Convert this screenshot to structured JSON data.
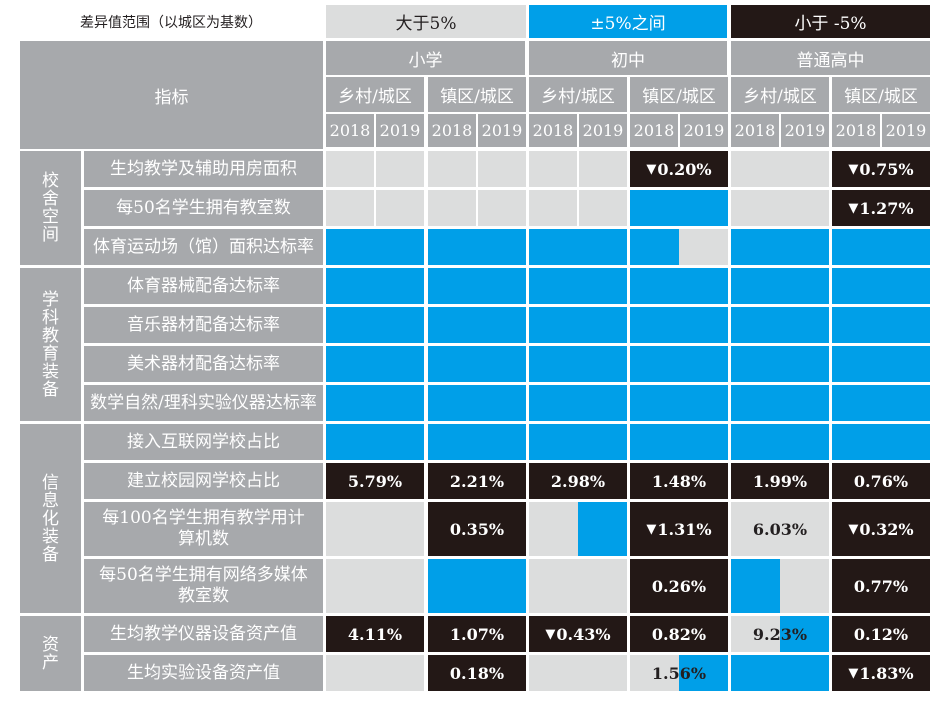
{
  "legend": {
    "title": "差异值范围（以城区为基数）",
    "items": [
      {
        "label": "大于5%",
        "color": "#dcdddd",
        "text_color": "#231f20"
      },
      {
        "label": "±5%之间",
        "color": "#009fe8",
        "text_color": "#ffffff"
      },
      {
        "label": "小于 -5%",
        "color": "#231816",
        "text_color": "#ffffff"
      }
    ]
  },
  "header": {
    "indicator_label": "指标",
    "levels": [
      "小学",
      "初中",
      "普通高中"
    ],
    "comparisons": [
      "乡村/城区",
      "镇区/城区"
    ],
    "years": [
      "2018",
      "2019"
    ]
  },
  "categories": [
    {
      "label": "校舍空间",
      "rows": 3
    },
    {
      "label": "学科教育装备",
      "rows": 4
    },
    {
      "label": "信息化装备",
      "rows": 4
    },
    {
      "label": "资产",
      "rows": 2
    }
  ],
  "rows": [
    {
      "indicator": "生均教学及辅助用房面积",
      "cells": [
        {
          "span": 2,
          "parts": [
            {
              "c": "g",
              "w": 1
            },
            {
              "c": "g",
              "w": 1
            }
          ],
          "text": "",
          "down": false
        },
        {
          "span": 2,
          "parts": [
            {
              "c": "g",
              "w": 1
            },
            {
              "c": "g",
              "w": 1
            }
          ],
          "text": "",
          "down": false
        },
        {
          "span": 2,
          "parts": [
            {
              "c": "g",
              "w": 1
            },
            {
              "c": "g",
              "w": 1
            }
          ],
          "text": "",
          "down": false
        },
        {
          "span": 2,
          "parts": [
            {
              "c": "k",
              "w": 1
            }
          ],
          "text": "0.20%",
          "down": true
        },
        {
          "span": 2,
          "parts": [
            {
              "c": "g",
              "w": 1
            }
          ],
          "text": "",
          "down": false
        },
        {
          "span": 2,
          "parts": [
            {
              "c": "k",
              "w": 1
            }
          ],
          "text": "0.75%",
          "down": true
        }
      ]
    },
    {
      "indicator": "每50名学生拥有教室数",
      "cells": [
        {
          "span": 2,
          "parts": [
            {
              "c": "g",
              "w": 1
            },
            {
              "c": "g",
              "w": 1
            }
          ],
          "text": "",
          "down": false
        },
        {
          "span": 2,
          "parts": [
            {
              "c": "g",
              "w": 1
            },
            {
              "c": "g",
              "w": 1
            }
          ],
          "text": "",
          "down": false
        },
        {
          "span": 2,
          "parts": [
            {
              "c": "g",
              "w": 1
            },
            {
              "c": "g",
              "w": 1
            }
          ],
          "text": "",
          "down": false
        },
        {
          "span": 2,
          "parts": [
            {
              "c": "b",
              "w": 1
            }
          ],
          "text": "",
          "down": false
        },
        {
          "span": 2,
          "parts": [
            {
              "c": "g",
              "w": 1
            }
          ],
          "text": "",
          "down": false
        },
        {
          "span": 2,
          "parts": [
            {
              "c": "k",
              "w": 1
            }
          ],
          "text": "1.27%",
          "down": true
        }
      ]
    },
    {
      "indicator": "体育运动场（馆）面积达标率",
      "cells": [
        {
          "span": 2,
          "parts": [
            {
              "c": "b",
              "w": 1
            }
          ],
          "text": "",
          "down": false
        },
        {
          "span": 2,
          "parts": [
            {
              "c": "b",
              "w": 1
            }
          ],
          "text": "",
          "down": false
        },
        {
          "span": 2,
          "parts": [
            {
              "c": "b",
              "w": 1
            }
          ],
          "text": "",
          "down": false
        },
        {
          "span": 2,
          "parts": [
            {
              "c": "b",
              "w": 1
            },
            {
              "c": "g",
              "w": 1
            }
          ],
          "text": "",
          "down": false
        },
        {
          "span": 2,
          "parts": [
            {
              "c": "b",
              "w": 1
            }
          ],
          "text": "",
          "down": false
        },
        {
          "span": 2,
          "parts": [
            {
              "c": "b",
              "w": 1
            }
          ],
          "text": "",
          "down": false
        }
      ]
    },
    {
      "indicator": "体育器械配备达标率",
      "cells": [
        {
          "span": 2,
          "parts": [
            {
              "c": "b",
              "w": 1
            }
          ],
          "text": "",
          "down": false
        },
        {
          "span": 2,
          "parts": [
            {
              "c": "b",
              "w": 1
            }
          ],
          "text": "",
          "down": false
        },
        {
          "span": 2,
          "parts": [
            {
              "c": "b",
              "w": 1
            }
          ],
          "text": "",
          "down": false
        },
        {
          "span": 2,
          "parts": [
            {
              "c": "b",
              "w": 1
            }
          ],
          "text": "",
          "down": false
        },
        {
          "span": 2,
          "parts": [
            {
              "c": "b",
              "w": 1
            }
          ],
          "text": "",
          "down": false
        },
        {
          "span": 2,
          "parts": [
            {
              "c": "b",
              "w": 1
            }
          ],
          "text": "",
          "down": false
        }
      ]
    },
    {
      "indicator": "音乐器材配备达标率",
      "cells": [
        {
          "span": 2,
          "parts": [
            {
              "c": "b",
              "w": 1
            }
          ],
          "text": "",
          "down": false
        },
        {
          "span": 2,
          "parts": [
            {
              "c": "b",
              "w": 1
            }
          ],
          "text": "",
          "down": false
        },
        {
          "span": 2,
          "parts": [
            {
              "c": "b",
              "w": 1
            }
          ],
          "text": "",
          "down": false
        },
        {
          "span": 2,
          "parts": [
            {
              "c": "b",
              "w": 1
            }
          ],
          "text": "",
          "down": false
        },
        {
          "span": 2,
          "parts": [
            {
              "c": "b",
              "w": 1
            }
          ],
          "text": "",
          "down": false
        },
        {
          "span": 2,
          "parts": [
            {
              "c": "b",
              "w": 1
            }
          ],
          "text": "",
          "down": false
        }
      ]
    },
    {
      "indicator": "美术器材配备达标率",
      "cells": [
        {
          "span": 2,
          "parts": [
            {
              "c": "b",
              "w": 1
            }
          ],
          "text": "",
          "down": false
        },
        {
          "span": 2,
          "parts": [
            {
              "c": "b",
              "w": 1
            }
          ],
          "text": "",
          "down": false
        },
        {
          "span": 2,
          "parts": [
            {
              "c": "b",
              "w": 1
            }
          ],
          "text": "",
          "down": false
        },
        {
          "span": 2,
          "parts": [
            {
              "c": "b",
              "w": 1
            }
          ],
          "text": "",
          "down": false
        },
        {
          "span": 2,
          "parts": [
            {
              "c": "b",
              "w": 1
            }
          ],
          "text": "",
          "down": false
        },
        {
          "span": 2,
          "parts": [
            {
              "c": "b",
              "w": 1
            }
          ],
          "text": "",
          "down": false
        }
      ]
    },
    {
      "indicator": "数学自然/理科实验仪器达标率",
      "cells": [
        {
          "span": 2,
          "parts": [
            {
              "c": "b",
              "w": 1
            }
          ],
          "text": "",
          "down": false
        },
        {
          "span": 2,
          "parts": [
            {
              "c": "b",
              "w": 1
            }
          ],
          "text": "",
          "down": false
        },
        {
          "span": 2,
          "parts": [
            {
              "c": "b",
              "w": 1
            }
          ],
          "text": "",
          "down": false
        },
        {
          "span": 2,
          "parts": [
            {
              "c": "b",
              "w": 1
            }
          ],
          "text": "",
          "down": false
        },
        {
          "span": 2,
          "parts": [
            {
              "c": "b",
              "w": 1
            }
          ],
          "text": "",
          "down": false
        },
        {
          "span": 2,
          "parts": [
            {
              "c": "b",
              "w": 1
            }
          ],
          "text": "",
          "down": false
        }
      ]
    },
    {
      "indicator": "接入互联网学校占比",
      "cells": [
        {
          "span": 2,
          "parts": [
            {
              "c": "b",
              "w": 1
            }
          ],
          "text": "",
          "down": false
        },
        {
          "span": 2,
          "parts": [
            {
              "c": "b",
              "w": 1
            }
          ],
          "text": "",
          "down": false
        },
        {
          "span": 2,
          "parts": [
            {
              "c": "b",
              "w": 1
            }
          ],
          "text": "",
          "down": false
        },
        {
          "span": 2,
          "parts": [
            {
              "c": "b",
              "w": 1
            }
          ],
          "text": "",
          "down": false
        },
        {
          "span": 2,
          "parts": [
            {
              "c": "b",
              "w": 1
            }
          ],
          "text": "",
          "down": false
        },
        {
          "span": 2,
          "parts": [
            {
              "c": "b",
              "w": 1
            }
          ],
          "text": "",
          "down": false
        }
      ]
    },
    {
      "indicator": "建立校园网学校占比",
      "cells": [
        {
          "span": 2,
          "parts": [
            {
              "c": "k",
              "w": 1
            }
          ],
          "text": "5.79%",
          "down": false
        },
        {
          "span": 2,
          "parts": [
            {
              "c": "k",
              "w": 1
            }
          ],
          "text": "2.21%",
          "down": false
        },
        {
          "span": 2,
          "parts": [
            {
              "c": "k",
              "w": 1
            }
          ],
          "text": "2.98%",
          "down": false
        },
        {
          "span": 2,
          "parts": [
            {
              "c": "k",
              "w": 1
            }
          ],
          "text": "1.48%",
          "down": false
        },
        {
          "span": 2,
          "parts": [
            {
              "c": "k",
              "w": 1
            }
          ],
          "text": "1.99%",
          "down": false
        },
        {
          "span": 2,
          "parts": [
            {
              "c": "k",
              "w": 1
            }
          ],
          "text": "0.76%",
          "down": false
        }
      ]
    },
    {
      "indicator": "每100名学生拥有教学用计算机数",
      "cells": [
        {
          "span": 2,
          "parts": [
            {
              "c": "g",
              "w": 1
            }
          ],
          "text": "",
          "down": false
        },
        {
          "span": 2,
          "parts": [
            {
              "c": "k",
              "w": 1
            }
          ],
          "text": "0.35%",
          "down": false
        },
        {
          "span": 2,
          "parts": [
            {
              "c": "g",
              "w": 1
            },
            {
              "c": "b",
              "w": 1
            }
          ],
          "text": "",
          "down": false
        },
        {
          "span": 2,
          "parts": [
            {
              "c": "k",
              "w": 1
            }
          ],
          "text": "1.31%",
          "down": true
        },
        {
          "span": 2,
          "parts": [
            {
              "c": "g",
              "w": 1
            }
          ],
          "text": "6.03%",
          "down": false
        },
        {
          "span": 2,
          "parts": [
            {
              "c": "k",
              "w": 1
            }
          ],
          "text": "0.32%",
          "down": true
        }
      ]
    },
    {
      "indicator": "每50名学生拥有网络多媒体教室数",
      "cells": [
        {
          "span": 2,
          "parts": [
            {
              "c": "g",
              "w": 1
            }
          ],
          "text": "",
          "down": false
        },
        {
          "span": 2,
          "parts": [
            {
              "c": "b",
              "w": 1
            }
          ],
          "text": "",
          "down": false
        },
        {
          "span": 2,
          "parts": [
            {
              "c": "g",
              "w": 1
            }
          ],
          "text": "",
          "down": false
        },
        {
          "span": 2,
          "parts": [
            {
              "c": "k",
              "w": 1
            }
          ],
          "text": "0.26%",
          "down": false
        },
        {
          "span": 2,
          "parts": [
            {
              "c": "b",
              "w": 1
            },
            {
              "c": "g",
              "w": 1
            }
          ],
          "text": "",
          "down": false
        },
        {
          "span": 2,
          "parts": [
            {
              "c": "k",
              "w": 1
            }
          ],
          "text": "0.77%",
          "down": false
        }
      ]
    },
    {
      "indicator": "生均教学仪器设备资产值",
      "cells": [
        {
          "span": 2,
          "parts": [
            {
              "c": "k",
              "w": 1
            }
          ],
          "text": "4.11%",
          "down": false
        },
        {
          "span": 2,
          "parts": [
            {
              "c": "k",
              "w": 1
            }
          ],
          "text": "1.07%",
          "down": false
        },
        {
          "span": 2,
          "parts": [
            {
              "c": "k",
              "w": 1
            }
          ],
          "text": "0.43%",
          "down": true
        },
        {
          "span": 2,
          "parts": [
            {
              "c": "k",
              "w": 1
            }
          ],
          "text": "0.82%",
          "down": false
        },
        {
          "span": 2,
          "parts": [
            {
              "c": "g",
              "w": 1
            },
            {
              "c": "b",
              "w": 1
            }
          ],
          "text": "9.23%",
          "down": false
        },
        {
          "span": 2,
          "parts": [
            {
              "c": "k",
              "w": 1
            }
          ],
          "text": "0.12%",
          "down": false
        }
      ]
    },
    {
      "indicator": "生均实验设备资产值",
      "cells": [
        {
          "span": 2,
          "parts": [
            {
              "c": "g",
              "w": 1
            }
          ],
          "text": "",
          "down": false
        },
        {
          "span": 2,
          "parts": [
            {
              "c": "k",
              "w": 1
            }
          ],
          "text": "0.18%",
          "down": false
        },
        {
          "span": 2,
          "parts": [
            {
              "c": "g",
              "w": 1
            }
          ],
          "text": "",
          "down": false
        },
        {
          "span": 2,
          "parts": [
            {
              "c": "g",
              "w": 1
            },
            {
              "c": "b",
              "w": 1
            }
          ],
          "text": "1.56%",
          "down": false
        },
        {
          "span": 2,
          "parts": [
            {
              "c": "b",
              "w": 1
            }
          ],
          "text": "",
          "down": false
        },
        {
          "span": 2,
          "parts": [
            {
              "c": "k",
              "w": 1
            }
          ],
          "text": "1.83%",
          "down": true
        }
      ]
    }
  ],
  "down_marker": "▼"
}
